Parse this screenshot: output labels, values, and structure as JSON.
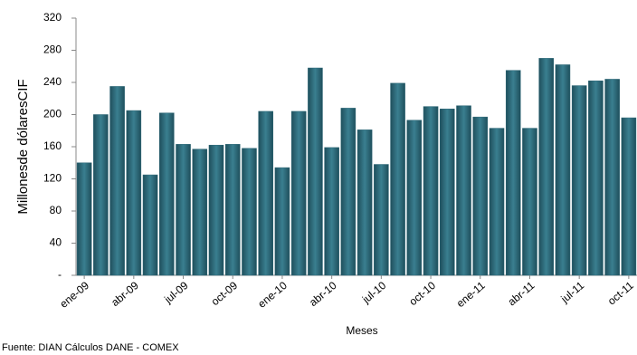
{
  "chart_data": {
    "type": "bar",
    "y_label": "Millonesde dólaresCIF",
    "x_label": "Meses",
    "source": "Fuente: DIAN Cálculos  DANE - COMEX",
    "categories": [
      "ene-09",
      null,
      null,
      "abr-09",
      null,
      null,
      "jul-09",
      null,
      null,
      "oct-09",
      null,
      null,
      "ene-10",
      null,
      null,
      "abr-10",
      null,
      null,
      "jul-10",
      null,
      null,
      "oct-10",
      null,
      null,
      "ene-11",
      null,
      null,
      "abr-11",
      null,
      null,
      "jul-11",
      null,
      null,
      "oct-11"
    ],
    "values": [
      140,
      200,
      235,
      205,
      125,
      202,
      163,
      157,
      162,
      163,
      158,
      204,
      134,
      204,
      258,
      159,
      208,
      181,
      138,
      239,
      193,
      210,
      207,
      211,
      197,
      183,
      255,
      183,
      270,
      262,
      236,
      242,
      244,
      196
    ],
    "color": "#2b6574",
    "ylim": [
      0,
      320
    ],
    "yticks": [
      {
        "value": 0,
        "label": "-"
      },
      40,
      80,
      120,
      160,
      200,
      240,
      280,
      320
    ]
  }
}
